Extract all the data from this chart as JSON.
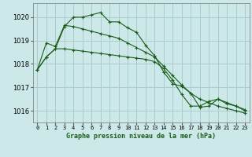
{
  "title": "Graphe pression niveau de la mer (hPa)",
  "background_color": "#cce8e8",
  "grid_color": "#aacccc",
  "line_color": "#1a5c1a",
  "xlim": [
    -0.5,
    23.5
  ],
  "ylim": [
    1015.5,
    1020.6
  ],
  "yticks": [
    1016,
    1017,
    1018,
    1019,
    1020
  ],
  "xticks": [
    0,
    1,
    2,
    3,
    4,
    5,
    6,
    7,
    8,
    9,
    10,
    11,
    12,
    13,
    14,
    15,
    16,
    17,
    18,
    19,
    20,
    21,
    22,
    23
  ],
  "series": [
    {
      "x": [
        0,
        1,
        2,
        3,
        4,
        5,
        6,
        7,
        8,
        9,
        10,
        11,
        12,
        13,
        14,
        15,
        16,
        17,
        18,
        19,
        20,
        21,
        22,
        23
      ],
      "y": [
        1017.75,
        1018.3,
        1018.65,
        1019.6,
        1020.0,
        1020.0,
        1020.1,
        1020.2,
        1019.8,
        1019.8,
        1019.55,
        1019.35,
        1018.8,
        1018.35,
        1017.65,
        1017.15,
        1017.05,
        1016.75,
        1016.15,
        1016.2,
        1016.5,
        1016.3,
        1016.2,
        1016.0
      ],
      "marker": "+"
    },
    {
      "x": [
        0,
        1,
        2,
        3,
        4,
        5,
        6,
        7,
        8,
        9,
        10,
        11,
        12,
        13,
        14,
        15,
        16,
        17,
        18,
        19,
        20,
        21,
        22,
        23
      ],
      "y": [
        1017.75,
        1018.9,
        1018.75,
        1019.65,
        1019.6,
        1019.5,
        1019.4,
        1019.3,
        1019.2,
        1019.1,
        1018.9,
        1018.7,
        1018.5,
        1018.3,
        1017.9,
        1017.5,
        1017.1,
        1016.75,
        1016.5,
        1016.35,
        1016.2,
        1016.1,
        1016.0,
        1015.9
      ],
      "marker": "+"
    },
    {
      "x": [
        0,
        1,
        2,
        3,
        4,
        5,
        6,
        7,
        8,
        9,
        10,
        11,
        12,
        13,
        14,
        15,
        16,
        17,
        18,
        19,
        20,
        21,
        22,
        23
      ],
      "y": [
        1017.75,
        1018.3,
        1018.65,
        1018.65,
        1018.6,
        1018.55,
        1018.5,
        1018.45,
        1018.4,
        1018.35,
        1018.3,
        1018.25,
        1018.2,
        1018.1,
        1017.8,
        1017.3,
        1016.7,
        1016.2,
        1016.2,
        1016.4,
        1016.5,
        1016.35,
        1016.2,
        1016.05
      ],
      "marker": "+"
    }
  ]
}
